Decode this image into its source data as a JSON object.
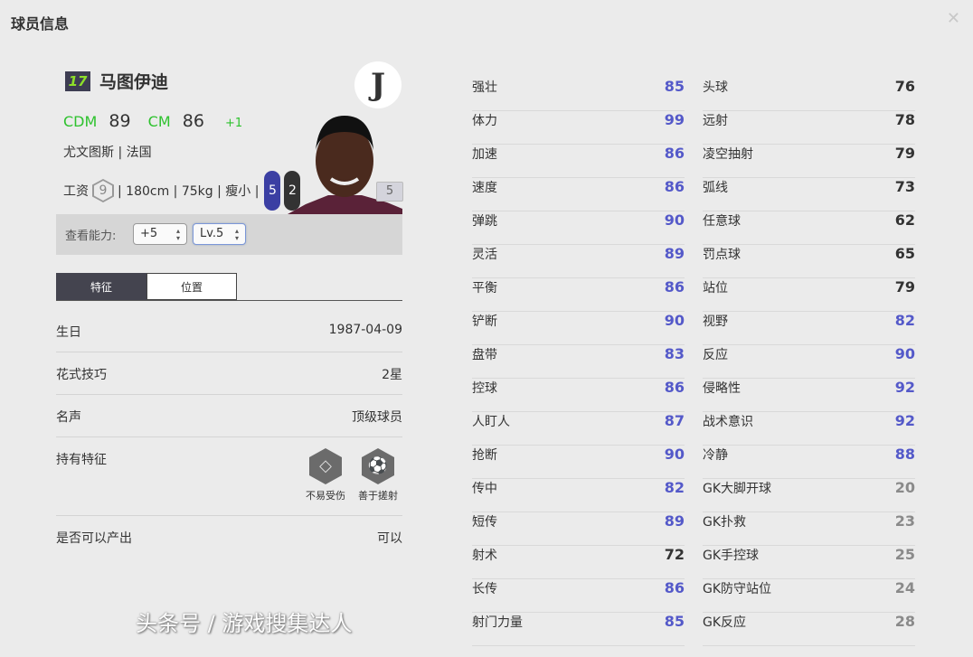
{
  "title": "球员信息",
  "player": {
    "number": "17",
    "name": "马图伊迪",
    "pos1": "CDM",
    "rat1": "89",
    "pos2": "CM",
    "rat2": "86",
    "plus": "+1",
    "club_nation": "尤文图斯 | 法国",
    "wage_label": "工资",
    "wage": "9",
    "details": "| 180cm | 75kg | 瘦小 |",
    "left_foot": "5",
    "right_foot": "2",
    "skill_badge": "5",
    "club_logo": "J"
  },
  "filter": {
    "label": "查看能力:",
    "upgrade": "+5",
    "level": "Lv.5"
  },
  "tabs": [
    "特征",
    "位置"
  ],
  "info": [
    {
      "k": "生日",
      "v": "1987-04-09"
    },
    {
      "k": "花式技巧",
      "v": "2星"
    },
    {
      "k": "名声",
      "v": "顶级球员"
    },
    {
      "k": "持有特征",
      "v": ""
    },
    {
      "k": "是否可以产出",
      "v": "可以"
    }
  ],
  "traits": [
    {
      "name": "不易受伤",
      "icon": "diamond-icon"
    },
    {
      "name": "善于搓射",
      "icon": "finesse-shot-icon"
    }
  ],
  "stats_left": [
    [
      "强壮",
      85
    ],
    [
      "体力",
      99
    ],
    [
      "加速",
      86
    ],
    [
      "速度",
      86
    ],
    [
      "弹跳",
      90
    ],
    [
      "灵活",
      89
    ],
    [
      "平衡",
      86
    ],
    [
      "铲断",
      90
    ],
    [
      "盘带",
      83
    ],
    [
      "控球",
      86
    ],
    [
      "人盯人",
      87
    ],
    [
      "抢断",
      90
    ],
    [
      "传中",
      82
    ],
    [
      "短传",
      89
    ],
    [
      "射术",
      72
    ],
    [
      "长传",
      86
    ],
    [
      "射门力量",
      85
    ]
  ],
  "stats_right": [
    [
      "头球",
      76
    ],
    [
      "远射",
      78
    ],
    [
      "凌空抽射",
      79
    ],
    [
      "弧线",
      73
    ],
    [
      "任意球",
      62
    ],
    [
      "罚点球",
      65
    ],
    [
      "站位",
      79
    ],
    [
      "视野",
      82
    ],
    [
      "反应",
      90
    ],
    [
      "侵略性",
      92
    ],
    [
      "战术意识",
      92
    ],
    [
      "冷静",
      88
    ],
    [
      "GK大脚开球",
      20
    ],
    [
      "GK扑救",
      23
    ],
    [
      "GK手控球",
      25
    ],
    [
      "GK防守站位",
      24
    ],
    [
      "GK反应",
      28
    ]
  ],
  "colors": {
    "high": "#5459c9",
    "mid": "#333333",
    "low": "#8a8a8a",
    "position": "#2ec22e"
  },
  "watermark": "头条号 / 游戏搜集达人"
}
